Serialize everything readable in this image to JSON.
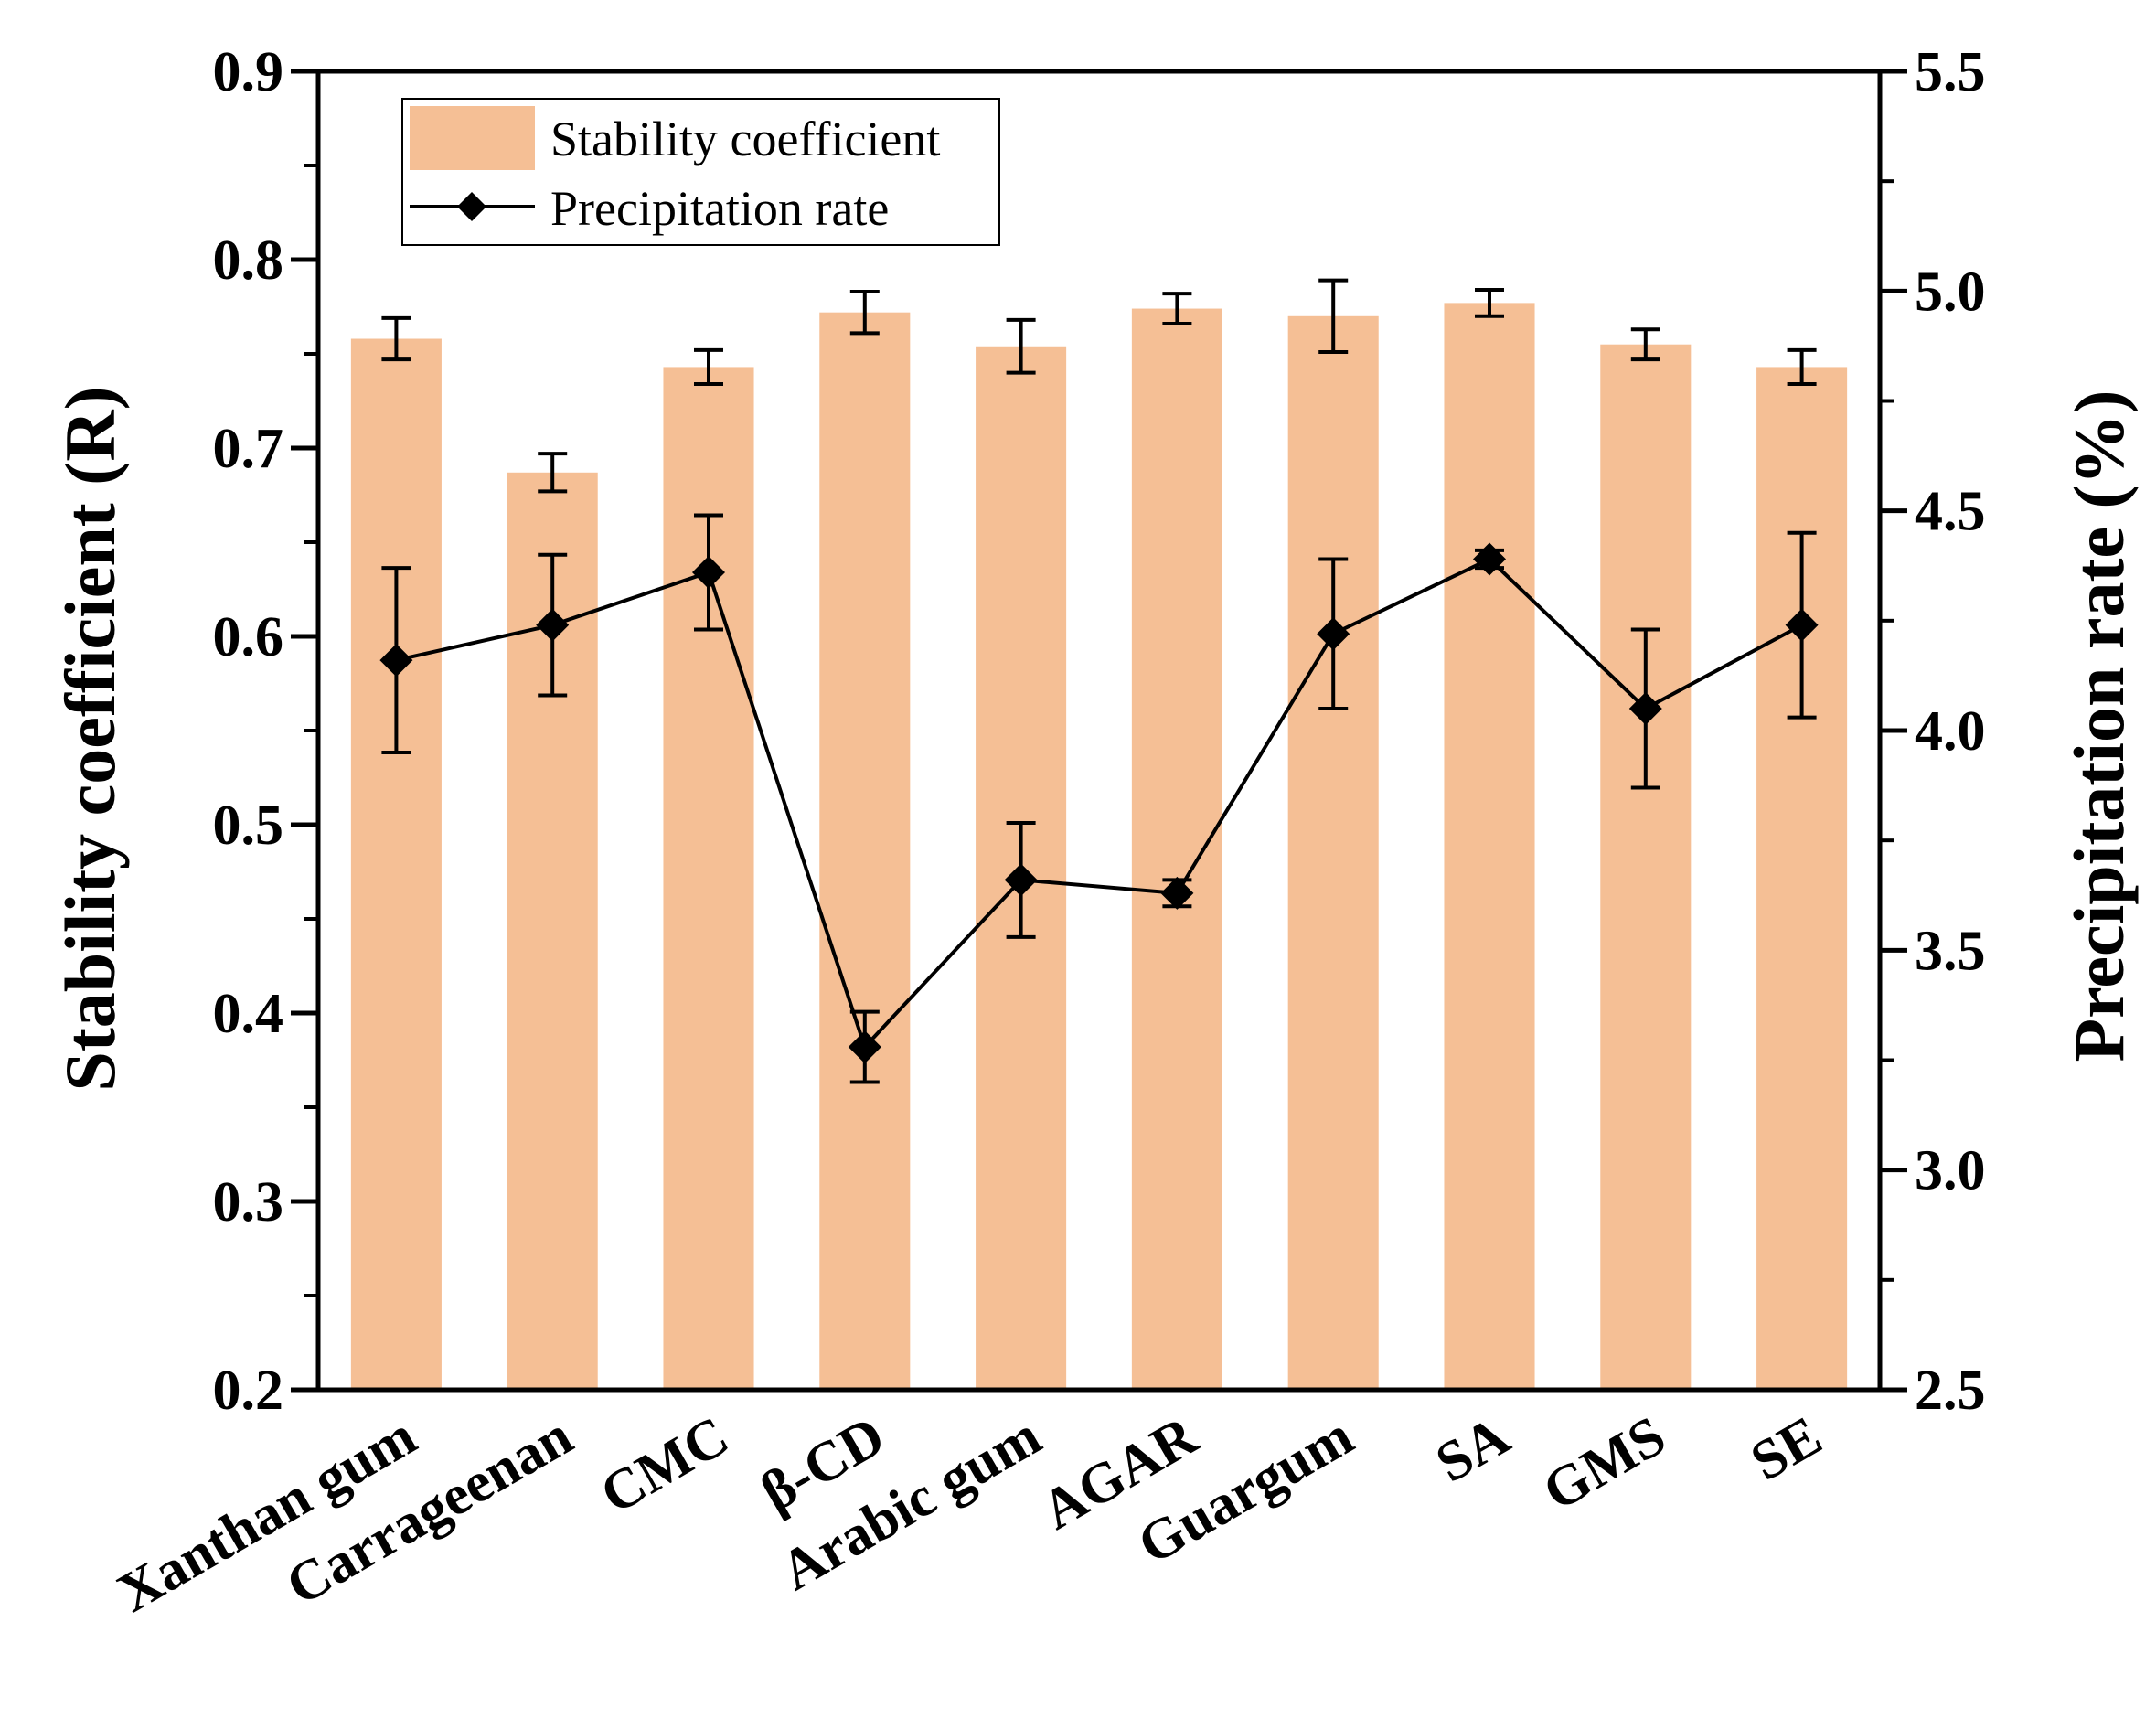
{
  "colors": {
    "bar": "#f5bf95",
    "line": "#000000",
    "axis": "#000000",
    "background": "#ffffff"
  },
  "chart_data": {
    "type": "bar",
    "combo": "bar + line with markers, dual y-axes",
    "categories": [
      "Xanthan gum",
      "Carrageenan",
      "CMC",
      "β-CD",
      "Arabic gum",
      "AGAR",
      "Guargum",
      "SA",
      "GMS",
      "SE"
    ],
    "series": [
      {
        "name": "Stability coefficient",
        "type": "bar",
        "axis": "left",
        "color": "#f5bf95",
        "values": [
          0.758,
          0.687,
          0.743,
          0.772,
          0.754,
          0.774,
          0.77,
          0.777,
          0.755,
          0.743
        ],
        "errors": [
          0.011,
          0.01,
          0.009,
          0.011,
          0.014,
          0.008,
          0.019,
          0.007,
          0.008,
          0.009
        ]
      },
      {
        "name": "Precipitation rate",
        "type": "line",
        "marker": "diamond",
        "axis": "right",
        "color": "#000000",
        "values": [
          4.16,
          4.24,
          4.36,
          3.28,
          3.66,
          3.63,
          4.22,
          4.39,
          4.05,
          4.24
        ],
        "errors": [
          0.21,
          0.16,
          0.13,
          0.08,
          0.13,
          0.03,
          0.17,
          0.02,
          0.18,
          0.21
        ]
      }
    ],
    "ylabel": "Stability coefficient (R)",
    "ylim": [
      0.2,
      0.9
    ],
    "yticks": [
      0.2,
      0.3,
      0.4,
      0.5,
      0.6,
      0.7,
      0.8,
      0.9
    ],
    "ytick_labels": [
      "0.2",
      "0.3",
      "0.4",
      "0.5",
      "0.6",
      "0.7",
      "0.8",
      "0.9"
    ],
    "y2label": "Precipitation rate (%)",
    "y2lim": [
      2.5,
      5.5
    ],
    "y2ticks": [
      2.5,
      3.0,
      3.5,
      4.0,
      4.5,
      5.0,
      5.5
    ],
    "y2tick_labels": [
      "2.5",
      "3.0",
      "3.5",
      "4.0",
      "4.5",
      "5.0",
      "5.5"
    ],
    "legend": {
      "position": "top-left",
      "entries": [
        "Stability coefficient",
        "Precipitation rate"
      ]
    },
    "grid": false
  }
}
